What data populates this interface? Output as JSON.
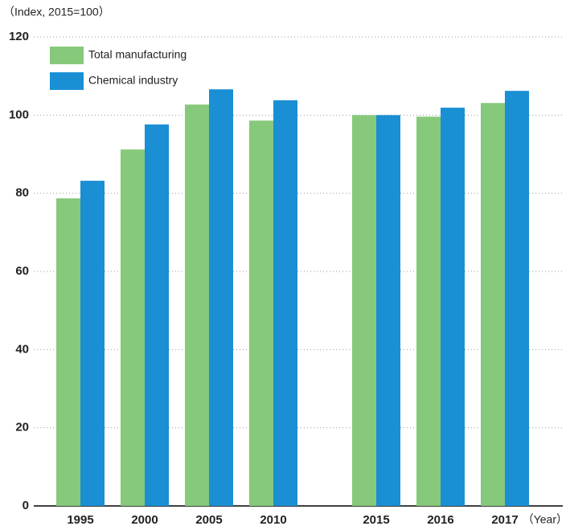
{
  "chart_data": {
    "type": "bar",
    "y_axis_label": "（Index, 2015=100）",
    "x_axis_label": "（Year）",
    "categories": [
      "1995",
      "2000",
      "2005",
      "2010",
      null,
      "2015",
      "2016",
      "2017"
    ],
    "series": [
      {
        "name": "Total manufacturing",
        "color": "#86c97a",
        "values": [
          78.7,
          91.2,
          102.7,
          98.6,
          null,
          100,
          99.6,
          103.1
        ]
      },
      {
        "name": "Chemical industry",
        "color": "#1a8fd4",
        "values": [
          83.2,
          97.6,
          106.6,
          103.8,
          null,
          100,
          101.9,
          106.2
        ]
      }
    ],
    "ylim": [
      0,
      120
    ],
    "yticks": [
      0,
      20,
      40,
      60,
      80,
      100,
      120
    ],
    "grid": true,
    "legend": "top-left"
  }
}
